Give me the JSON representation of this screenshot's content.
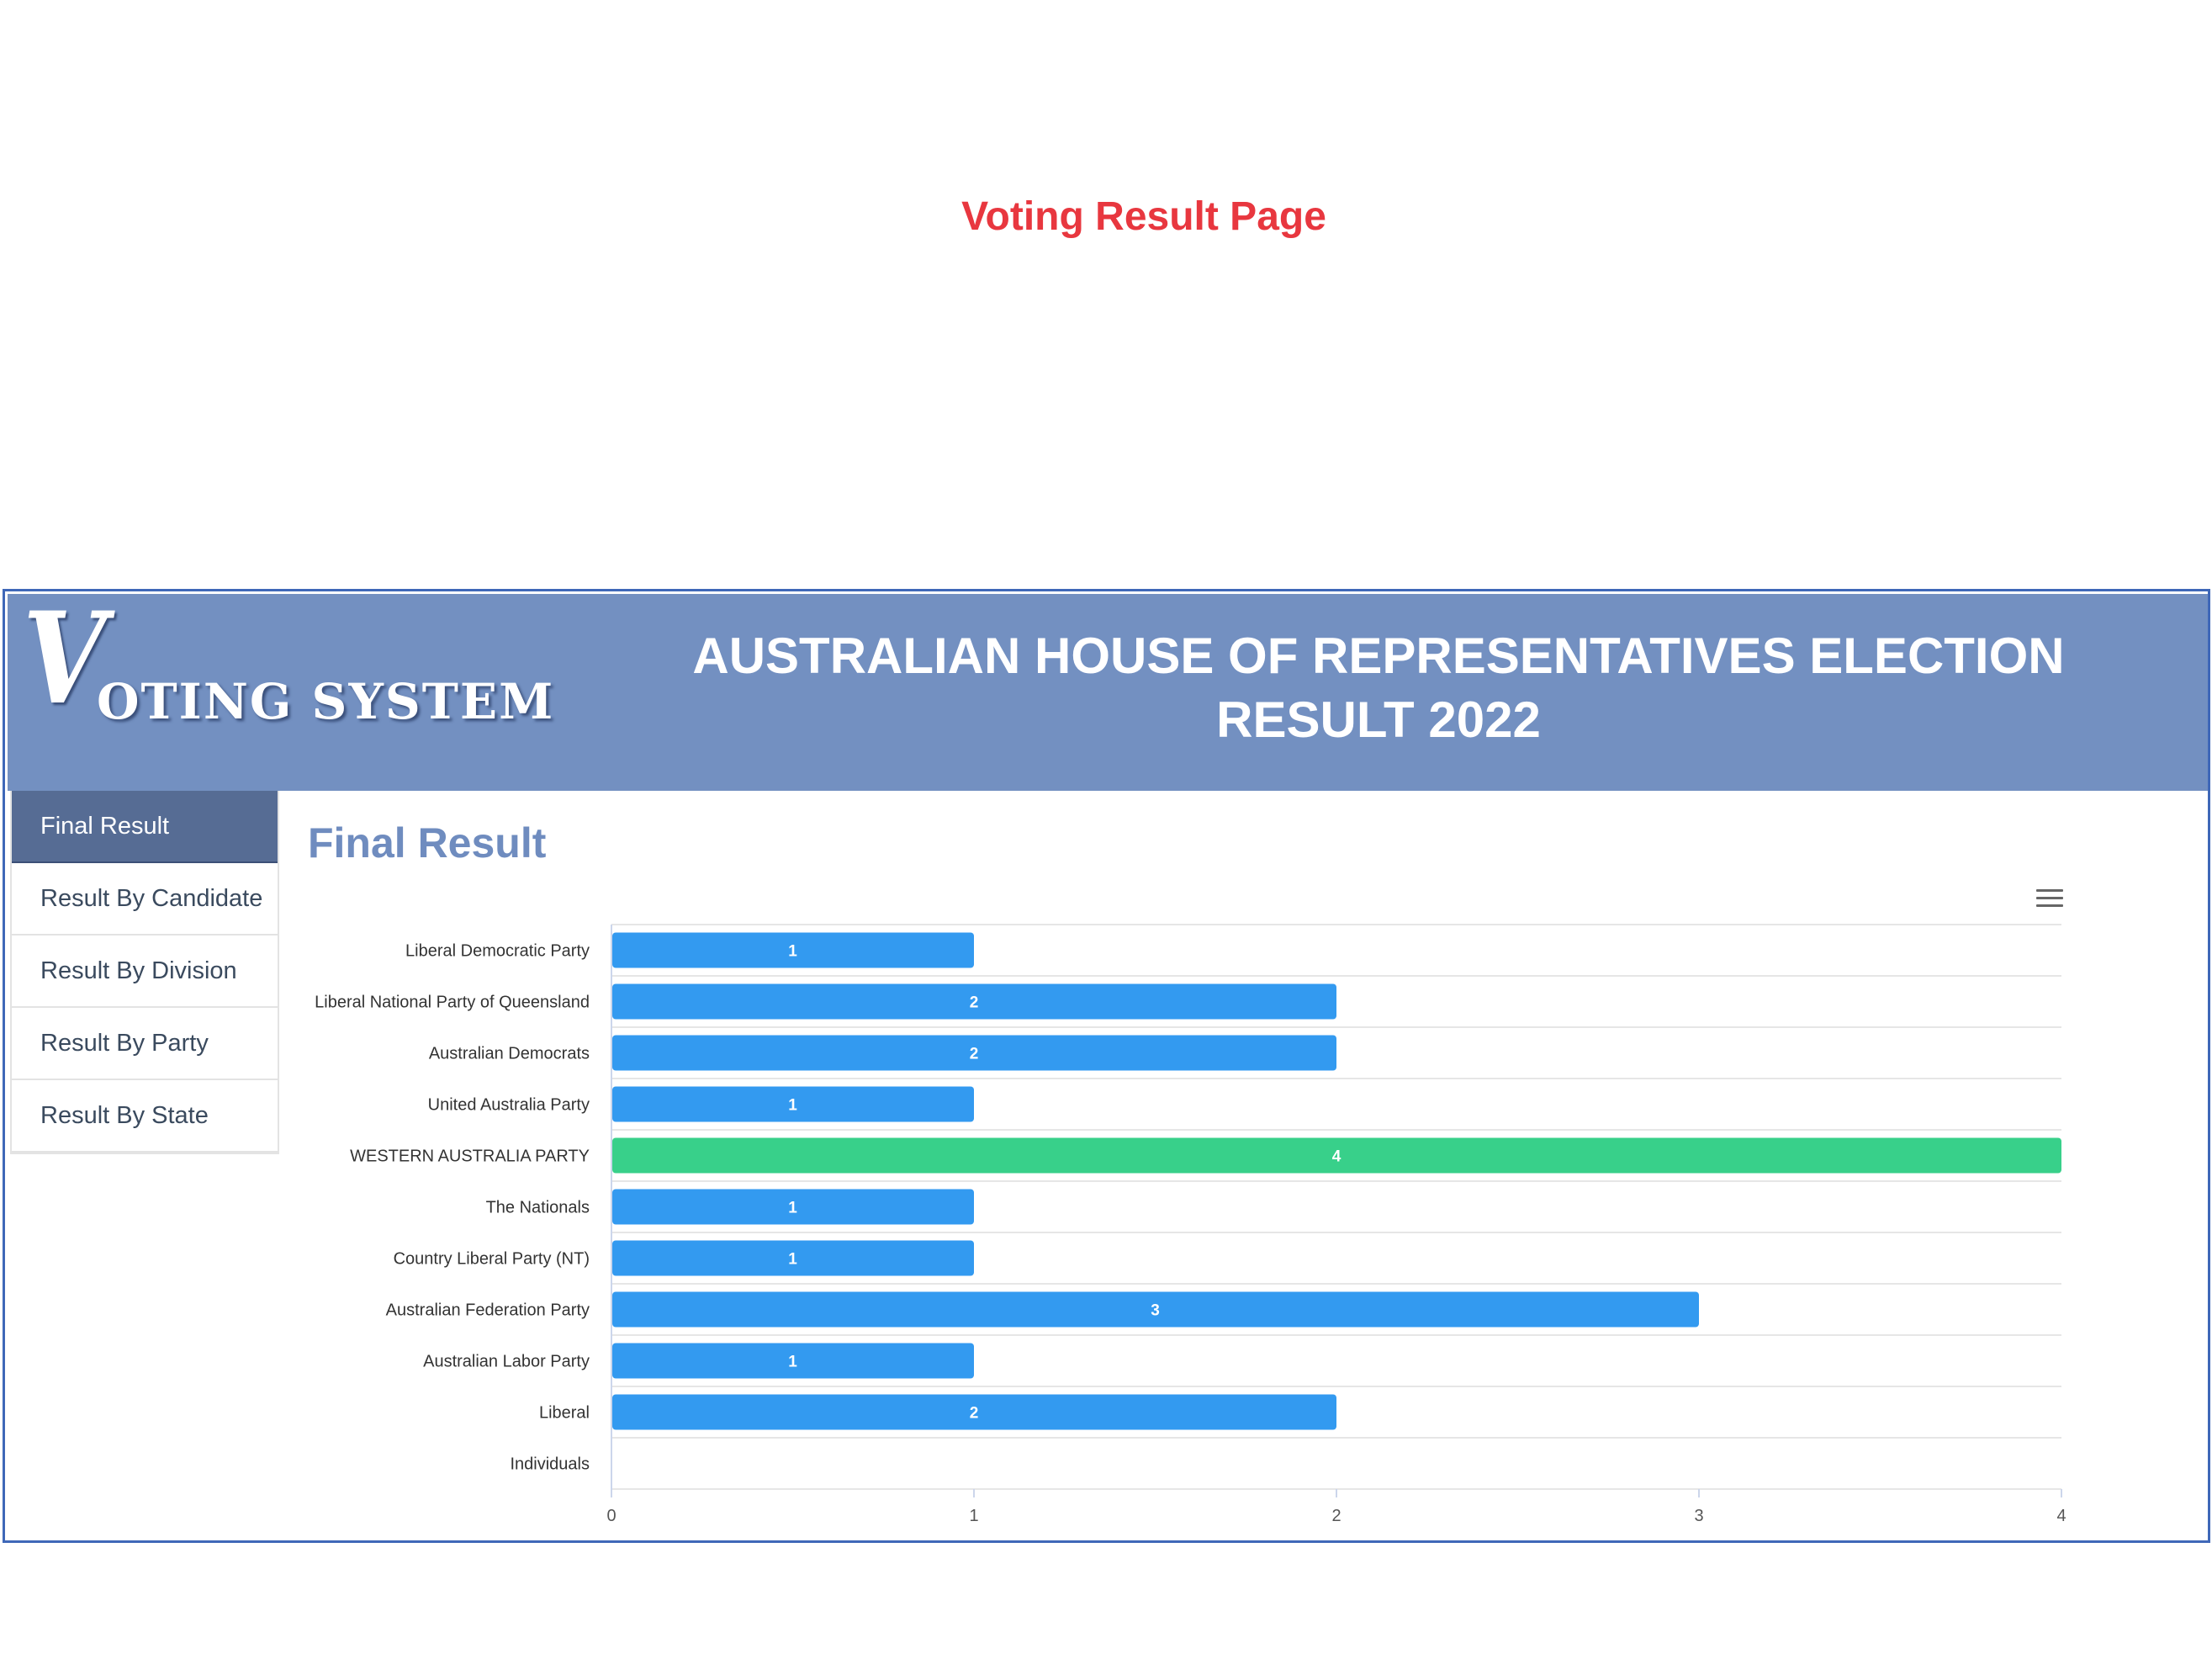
{
  "page": {
    "heading": "Voting Result Page"
  },
  "header": {
    "logo_initial": "V",
    "logo_rest": "OTING SYSTEM",
    "title": "AUSTRALIAN HOUSE OF REPRESENTATIVES ELECTION RESULT 2022"
  },
  "sidebar": {
    "items": [
      {
        "label": "Final Result",
        "active": true
      },
      {
        "label": "Result By Candidate"
      },
      {
        "label": "Result By Division"
      },
      {
        "label": "Result By Party"
      },
      {
        "label": "Result By State"
      }
    ]
  },
  "main": {
    "title": "Final Result",
    "menu_icon": "hamburger-menu-icon"
  },
  "colors": {
    "bar": "#339af0",
    "highlight": "#38d08a",
    "accent_title": "#e8373f",
    "header_bg": "#7390c1"
  },
  "chart_data": {
    "type": "bar",
    "orientation": "horizontal",
    "categories": [
      "Liberal Democratic Party",
      "Liberal National Party of Queensland",
      "Australian Democrats",
      "United Australia Party",
      "WESTERN AUSTRALIA PARTY",
      "The Nationals",
      "Country Liberal Party (NT)",
      "Australian Federation Party",
      "Australian Labor Party",
      "Liberal",
      "Individuals"
    ],
    "values": [
      1,
      2,
      2,
      1,
      4,
      1,
      1,
      3,
      1,
      2,
      0
    ],
    "highlight_index": 4,
    "xlim": [
      0,
      4
    ],
    "xticks": [
      "0",
      "1",
      "2",
      "3",
      "4"
    ],
    "data_labels": true,
    "grid": true
  }
}
